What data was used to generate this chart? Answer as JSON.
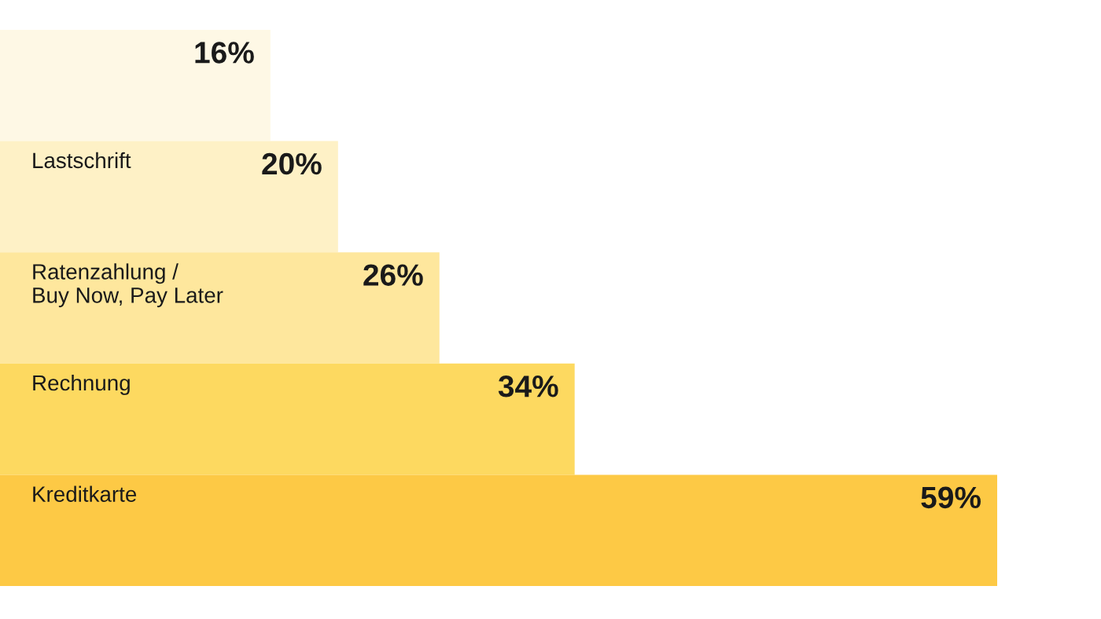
{
  "chart_data": {
    "type": "bar",
    "orientation": "horizontal",
    "tick_labels": false,
    "categories": [
      null,
      "Lastschrift",
      "Ratenzahlung /\nBuy Now, Pay Later",
      "Rechnung",
      "Kreditkarte"
    ],
    "values": [
      16,
      20,
      26,
      34,
      59
    ],
    "value_labels": [
      "16%",
      "20%",
      "26%",
      "34%",
      "59%"
    ],
    "colors": [
      "#fef8e5",
      "#fef1c6",
      "#fee79d",
      "#fdd960",
      "#fdc945"
    ]
  }
}
